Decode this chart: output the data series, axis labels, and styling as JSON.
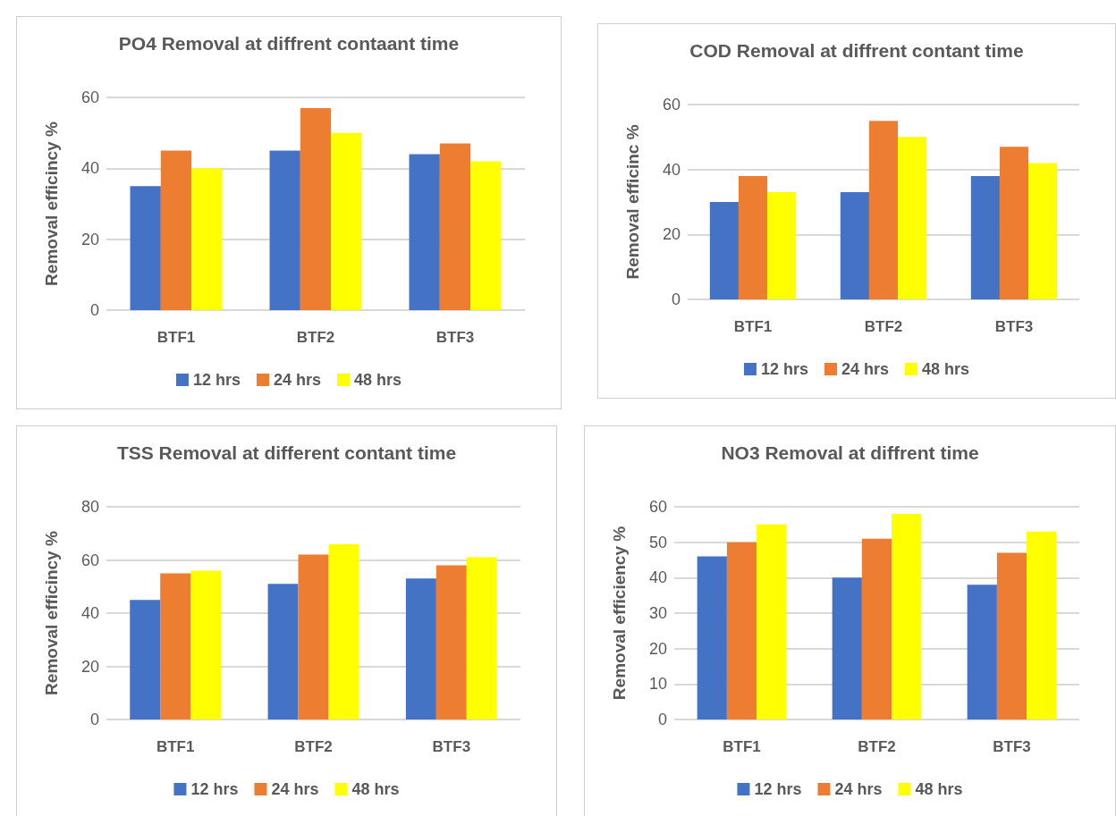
{
  "chart_data": [
    {
      "type": "bar",
      "title": "PO4 Removal at diffrent contaant time",
      "ylabel": "Removal efficincy %",
      "categories": [
        "BTF1",
        "BTF2",
        "BTF3"
      ],
      "ylim": [
        0,
        60
      ],
      "yticks": [
        0,
        20,
        40,
        60
      ],
      "grid": "y",
      "legend": "bottom",
      "series": [
        {
          "name": "12 hrs",
          "color": "#4472c4",
          "values": [
            35,
            45,
            44
          ]
        },
        {
          "name": "24 hrs",
          "color": "#ed7d31",
          "values": [
            45,
            57,
            47
          ]
        },
        {
          "name": "48 hrs",
          "color": "#ffff00",
          "values": [
            40,
            50,
            42
          ]
        }
      ]
    },
    {
      "type": "bar",
      "title": "COD Removal at diffrent contant time",
      "ylabel": "Removal efficinc %",
      "categories": [
        "BTF1",
        "BTF2",
        "BTF3"
      ],
      "ylim": [
        0,
        60
      ],
      "yticks": [
        0,
        20,
        40,
        60
      ],
      "grid": "y",
      "legend": "bottom",
      "series": [
        {
          "name": "12 hrs",
          "color": "#4472c4",
          "values": [
            30,
            33,
            38
          ]
        },
        {
          "name": "24 hrs",
          "color": "#ed7d31",
          "values": [
            38,
            55,
            47
          ]
        },
        {
          "name": "48 hrs",
          "color": "#ffff00",
          "values": [
            33,
            50,
            42
          ]
        }
      ]
    },
    {
      "type": "bar",
      "title": "TSS Removal at different contant time",
      "ylabel": "Removal efficincy %",
      "categories": [
        "BTF1",
        "BTF2",
        "BTF3"
      ],
      "ylim": [
        0,
        80
      ],
      "yticks": [
        0,
        20,
        40,
        60,
        80
      ],
      "grid": "y",
      "legend": "bottom",
      "series": [
        {
          "name": "12 hrs",
          "color": "#4472c4",
          "values": [
            45,
            51,
            53
          ]
        },
        {
          "name": "24 hrs",
          "color": "#ed7d31",
          "values": [
            55,
            62,
            58
          ]
        },
        {
          "name": "48 hrs",
          "color": "#ffff00",
          "values": [
            56,
            66,
            61
          ]
        }
      ]
    },
    {
      "type": "bar",
      "title": "NO3 Removal at diffrent time",
      "ylabel": "Removal efficiency %",
      "categories": [
        "BTF1",
        "BTF2",
        "BTF3"
      ],
      "ylim": [
        0,
        60
      ],
      "yticks": [
        0,
        10,
        20,
        30,
        40,
        50,
        60
      ],
      "grid": "y",
      "legend": "bottom",
      "series": [
        {
          "name": "12 hrs",
          "color": "#4472c4",
          "values": [
            46,
            40,
            38
          ]
        },
        {
          "name": "24 hrs",
          "color": "#ed7d31",
          "values": [
            50,
            51,
            47
          ]
        },
        {
          "name": "48 hrs",
          "color": "#ffff00",
          "values": [
            55,
            58,
            53
          ]
        }
      ]
    }
  ]
}
